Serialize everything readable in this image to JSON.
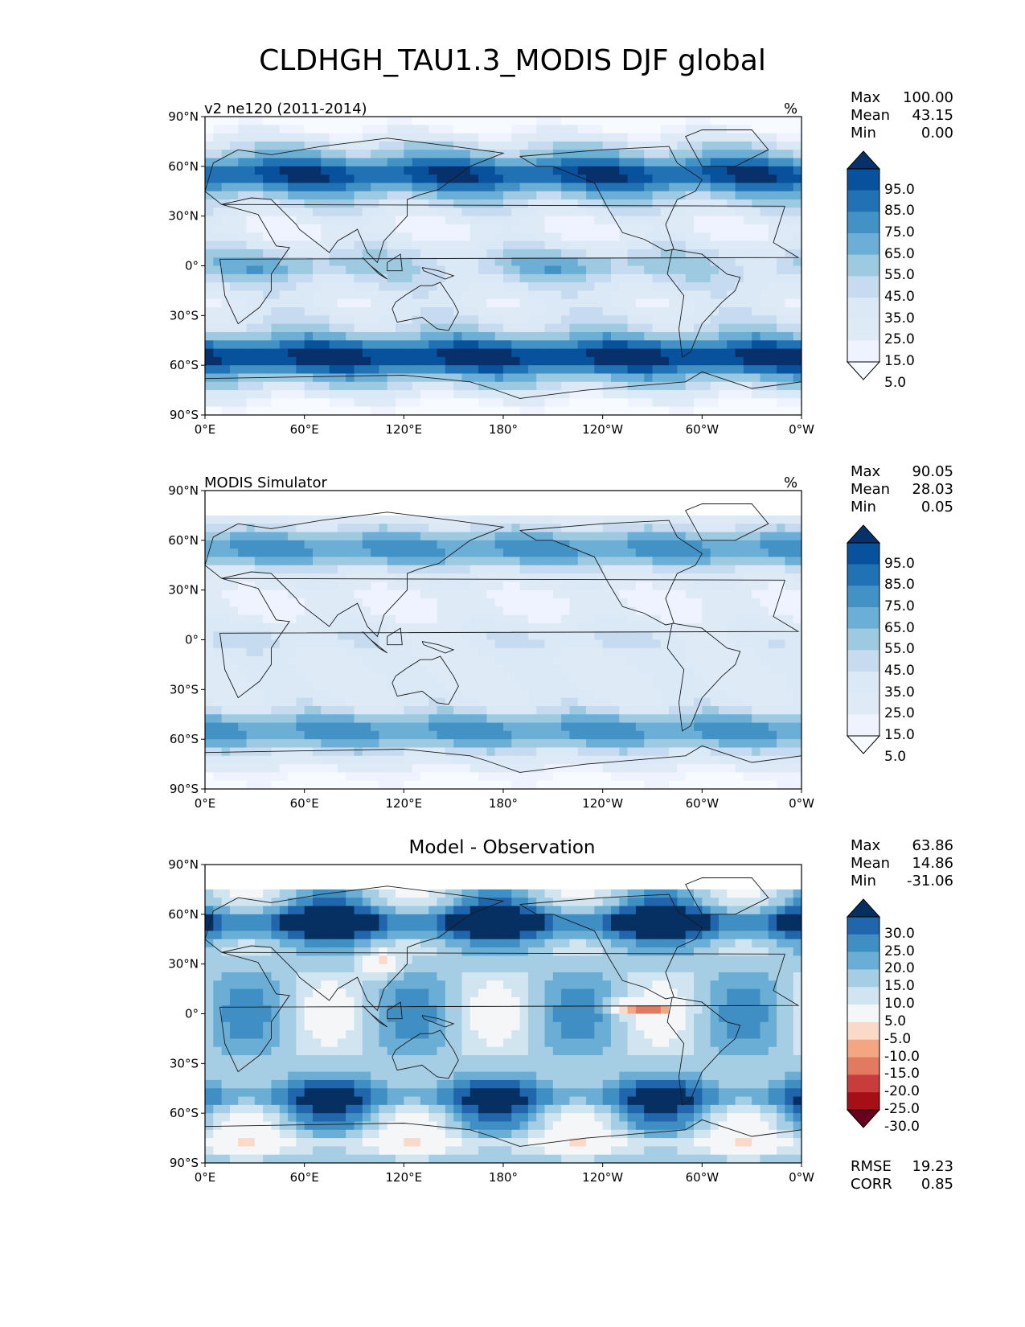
{
  "figure": {
    "title": "CLDHGH_TAU1.3_MODIS DJF global"
  },
  "axes": {
    "lat_ticks": [
      "90°N",
      "60°N",
      "30°N",
      "0°",
      "30°S",
      "60°S",
      "90°S"
    ],
    "lon_ticks": [
      "0°E",
      "60°E",
      "120°E",
      "180°",
      "120°W",
      "60°W",
      "0°W"
    ]
  },
  "panels": [
    {
      "title": "v2 ne120 (2011-2014)",
      "units": "%",
      "stats": [
        {
          "label": "Max",
          "value": "100.00"
        },
        {
          "label": "Mean",
          "value": "43.15"
        },
        {
          "label": "Min",
          "value": "0.00"
        }
      ],
      "colorbar": {
        "labels": [
          "95.0",
          "85.0",
          "75.0",
          "65.0",
          "55.0",
          "45.0",
          "35.0",
          "25.0",
          "15.0",
          "5.0"
        ],
        "colors": [
          "#08306b",
          "#08519c",
          "#2171b5",
          "#4292c6",
          "#6baed6",
          "#9ecae1",
          "#c6dbef",
          "#dbe9f6",
          "#deebf7",
          "#eff3ff",
          "#f7fbff"
        ]
      }
    },
    {
      "title": "MODIS Simulator",
      "units": "%",
      "stats": [
        {
          "label": "Max",
          "value": "90.05"
        },
        {
          "label": "Mean",
          "value": "28.03"
        },
        {
          "label": "Min",
          "value": "0.05"
        }
      ],
      "colorbar": {
        "labels": [
          "95.0",
          "85.0",
          "75.0",
          "65.0",
          "55.0",
          "45.0",
          "35.0",
          "25.0",
          "15.0",
          "5.0"
        ],
        "colors": [
          "#08306b",
          "#08519c",
          "#2171b5",
          "#4292c6",
          "#6baed6",
          "#9ecae1",
          "#c6dbef",
          "#dbe9f6",
          "#deebf7",
          "#eff3ff",
          "#f7fbff"
        ]
      }
    },
    {
      "title": "Model - Observation",
      "units": "",
      "stats": [
        {
          "label": "Max",
          "value": "63.86"
        },
        {
          "label": "Mean",
          "value": "14.86"
        },
        {
          "label": "Min",
          "value": "-31.06"
        }
      ],
      "metrics": [
        {
          "label": "RMSE",
          "value": "19.23"
        },
        {
          "label": "CORR",
          "value": "0.85"
        }
      ],
      "colorbar": {
        "labels": [
          "30.0",
          "25.0",
          "20.0",
          "15.0",
          "10.0",
          "5.0",
          "-5.0",
          "-10.0",
          "-15.0",
          "-20.0",
          "-25.0",
          "-30.0"
        ],
        "colors": [
          "#053061",
          "#2166ac",
          "#3f8ec4",
          "#6aaed6",
          "#a5cde3",
          "#d1e5f0",
          "#f4f6f8",
          "#fbd9c9",
          "#f4a582",
          "#e27a62",
          "#c83c3c",
          "#a50f15",
          "#67001f"
        ]
      }
    }
  ]
}
